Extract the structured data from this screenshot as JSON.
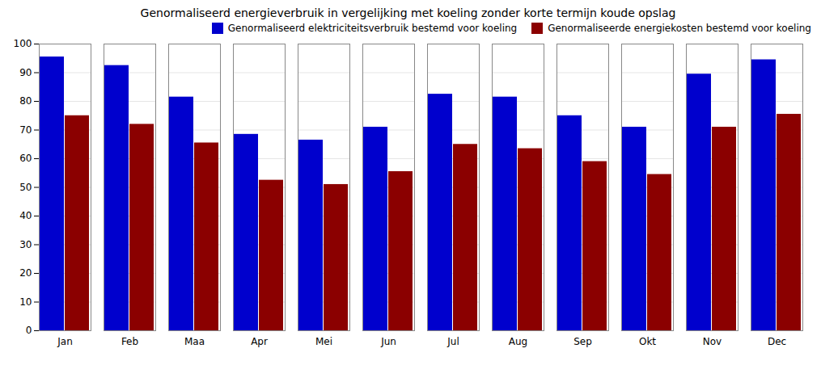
{
  "chart_data": {
    "type": "bar",
    "title": "Genormaliseerd energieverbruik in vergelijking met koeling zonder korte termijn koude opslag",
    "categories": [
      "Jan",
      "Feb",
      "Maa",
      "Apr",
      "Mei",
      "Jun",
      "Jul",
      "Aug",
      "Sep",
      "Okt",
      "Nov",
      "Dec"
    ],
    "series": [
      {
        "name": "Genormaliseerd elektriciteitsverbruik bestemd voor koeling",
        "color": "#0000CD",
        "values": [
          95.5,
          92.5,
          81.5,
          68.5,
          66.5,
          71.0,
          82.5,
          81.5,
          75.0,
          71.0,
          89.5,
          94.5
        ]
      },
      {
        "name": "Genormaliseerde energiekosten bestemd voor koeling",
        "color": "#8B0000",
        "values": [
          75.0,
          72.0,
          65.5,
          52.5,
          51.0,
          55.5,
          65.0,
          63.5,
          59.0,
          54.5,
          71.0,
          75.5
        ]
      }
    ],
    "ylim": [
      0,
      100
    ],
    "yticks": [
      0,
      10,
      20,
      30,
      40,
      50,
      60,
      70,
      80,
      90,
      100
    ],
    "grid": true,
    "legend": "upper right"
  }
}
